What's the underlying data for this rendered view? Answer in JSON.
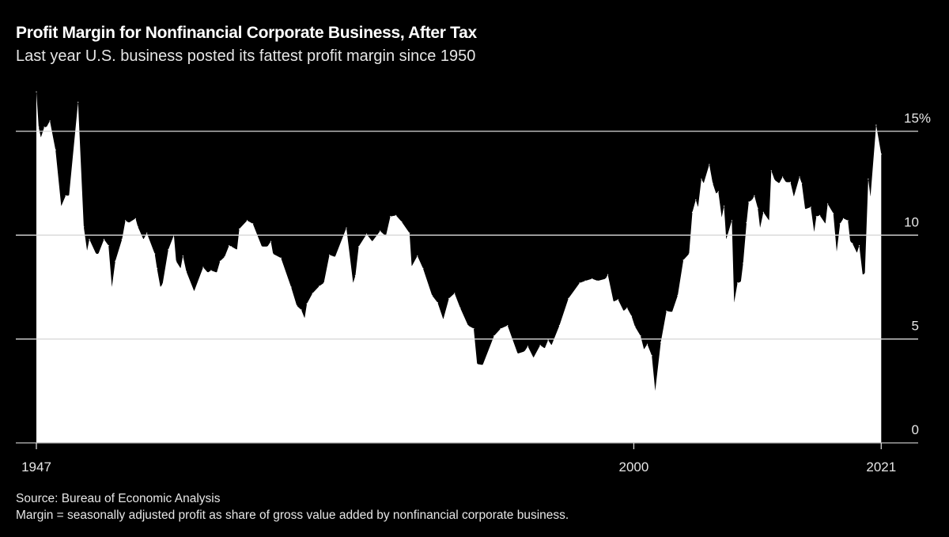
{
  "chart_data": {
    "type": "area",
    "title": "Profit Margin for Nonfinancial Corporate Business, After Tax",
    "subtitle": "Last year U.S. business posted its fattest profit margin since 1950",
    "xlabel": "",
    "ylabel": "",
    "xlim": [
      1947,
      2022
    ],
    "ylim": [
      0,
      15
    ],
    "grid": true,
    "y_ticks": [
      {
        "value": 15,
        "label": "15%"
      },
      {
        "value": 10,
        "label": "10"
      },
      {
        "value": 5,
        "label": "5"
      },
      {
        "value": 0,
        "label": "0"
      }
    ],
    "x_ticks": [
      {
        "value": 1947,
        "label": "1947"
      },
      {
        "value": 2000,
        "label": "2000"
      },
      {
        "value": 2021,
        "label": "2021"
      }
    ],
    "fill_color": "#ffffff",
    "background_color": "#000000",
    "x": [
      1947.0,
      1947.2,
      1947.4,
      1947.7,
      1947.9,
      1948.2,
      1948.7,
      1949.2,
      1949.6,
      1949.9,
      1950.7,
      1951.2,
      1951.5,
      1951.7,
      1952.3,
      1952.5,
      1953.0,
      1953.4,
      1953.7,
      1954.0,
      1954.6,
      1954.9,
      1955.2,
      1955.8,
      1956.0,
      1956.5,
      1956.8,
      1957.5,
      1957.7,
      1958.0,
      1958.2,
      1958.7,
      1959.2,
      1959.4,
      1959.8,
      1960.0,
      1960.3,
      1961.0,
      1961.8,
      1962.2,
      1962.5,
      1963.0,
      1963.3,
      1963.7,
      1964.1,
      1964.3,
      1964.8,
      1965.0,
      1965.7,
      1966.2,
      1967.0,
      1967.5,
      1967.8,
      1968.0,
      1968.7,
      1969.6,
      1970.1,
      1970.5,
      1970.8,
      1971.0,
      1971.5,
      1972.1,
      1972.5,
      1973.0,
      1973.5,
      1974.5,
      1975.1,
      1975.3,
      1975.6,
      1976.3,
      1976.8,
      1977.5,
      1978.0,
      1978.4,
      1978.9,
      1979.4,
      1980.1,
      1980.3,
      1980.8,
      1981.3,
      1982.1,
      1982.6,
      1983.1,
      1983.6,
      1984.1,
      1984.6,
      1985.3,
      1985.8,
      1986.1,
      1986.6,
      1987.6,
      1988.2,
      1988.8,
      1989.7,
      1990.3,
      1990.6,
      1991.1,
      1991.7,
      1992.1,
      1992.4,
      1992.7,
      1993.4,
      1994.2,
      1995.2,
      1995.7,
      1996.3,
      1996.8,
      1997.5,
      1997.7,
      1998.2,
      1998.6,
      1999.1,
      1999.4,
      1999.8,
      2000.1,
      2000.6,
      2000.9,
      2001.2,
      2001.6,
      2001.9,
      2002.4,
      2002.9,
      2003.4,
      2003.9,
      2004.4,
      2004.9,
      2005.2,
      2005.5,
      2005.7,
      2006.0,
      2006.2,
      2006.7,
      2007.0,
      2007.3,
      2007.5,
      2007.8,
      2008.0,
      2008.2,
      2008.7,
      2008.9,
      2009.2,
      2009.5,
      2009.7,
      2010.0,
      2010.2,
      2010.5,
      2010.7,
      2011.0,
      2011.2,
      2011.5,
      2012.0,
      2012.2,
      2012.5,
      2012.9,
      2013.2,
      2013.5,
      2013.9,
      2014.2,
      2014.7,
      2014.9,
      2015.2,
      2015.7,
      2016.0,
      2016.2,
      2016.5,
      2017.0,
      2017.2,
      2017.7,
      2018.0,
      2018.3,
      2018.6,
      2019.0,
      2019.2,
      2019.4,
      2019.8,
      2020.0,
      2020.3,
      2020.5,
      2020.8,
      2021.0,
      2021.5,
      2021.95
    ],
    "values": [
      16.9,
      15.2,
      14.7,
      15.2,
      15.2,
      15.5,
      14.1,
      11.4,
      11.9,
      11.9,
      16.4,
      10.4,
      9.25,
      9.8,
      9.1,
      9.1,
      9.8,
      9.5,
      7.5,
      8.75,
      9.8,
      10.7,
      10.6,
      10.8,
      10.4,
      9.8,
      10.1,
      9.1,
      8.4,
      7.5,
      7.65,
      9.3,
      10.0,
      8.75,
      8.4,
      9.0,
      8.25,
      7.3,
      8.45,
      8.2,
      8.3,
      8.2,
      8.75,
      8.95,
      9.5,
      9.45,
      9.3,
      10.3,
      10.7,
      10.55,
      9.45,
      9.45,
      9.7,
      9.1,
      8.9,
      7.5,
      6.6,
      6.4,
      6.0,
      6.7,
      7.2,
      7.55,
      7.7,
      9.05,
      8.95,
      10.35,
      7.7,
      8.05,
      9.45,
      10.05,
      9.7,
      10.2,
      9.95,
      10.9,
      10.95,
      10.65,
      10.1,
      8.5,
      9.0,
      8.4,
      7.1,
      6.75,
      5.95,
      6.95,
      7.2,
      6.5,
      5.65,
      5.5,
      3.8,
      3.75,
      5.15,
      5.5,
      5.65,
      4.3,
      4.4,
      4.65,
      4.1,
      4.7,
      4.55,
      4.95,
      4.7,
      5.65,
      6.95,
      7.7,
      7.8,
      7.9,
      7.8,
      7.9,
      8.1,
      6.8,
      6.9,
      6.35,
      6.5,
      6.1,
      5.6,
      5.15,
      4.5,
      4.75,
      4.2,
      2.5,
      4.85,
      6.35,
      6.3,
      7.1,
      8.8,
      9.1,
      11.1,
      11.7,
      11.35,
      12.7,
      12.5,
      13.4,
      12.5,
      12.0,
      12.1,
      10.85,
      11.4,
      9.8,
      10.7,
      6.75,
      7.7,
      7.75,
      8.65,
      10.6,
      11.6,
      11.7,
      11.9,
      11.3,
      10.35,
      11.1,
      10.7,
      13.1,
      12.65,
      12.5,
      12.8,
      12.55,
      12.55,
      11.85,
      12.8,
      12.5,
      11.25,
      11.35,
      10.15,
      10.9,
      10.95,
      10.55,
      11.5,
      11.05,
      9.2,
      10.55,
      10.8,
      10.7,
      9.7,
      9.6,
      9.15,
      9.5,
      8.1,
      8.15,
      12.7,
      11.85,
      15.3,
      13.9
    ]
  },
  "footer": {
    "source": "Source: Bureau of Economic Analysis",
    "note": "Margin = seasonally adjusted profit as share of gross value added by nonfinancial corporate business."
  }
}
